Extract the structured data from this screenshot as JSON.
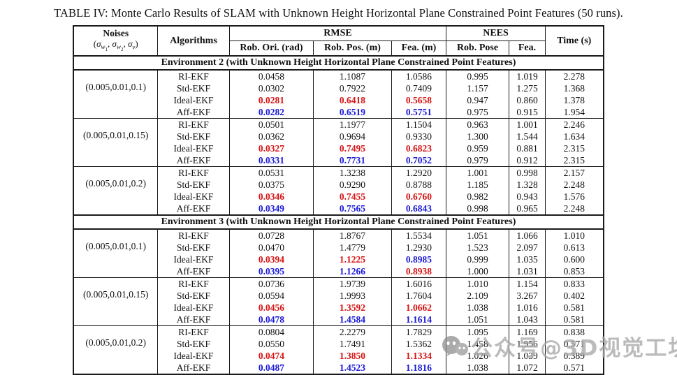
{
  "title": "TABLE IV: Monte Carlo Results of SLAM with Unknown Height Horizontal Plane Constrained Point Features (50 runs).",
  "header": {
    "noises_line1": "Noises",
    "noises_line2": "(σw1, σw2, σv)",
    "algorithms": "Algorithms",
    "rmse": "RMSE",
    "nees": "NEES",
    "time": "Time (s)",
    "sub": [
      "Rob. Ori. (rad)",
      "Rob. Pos. (m)",
      "Fea. (m)",
      "Rob. Pose",
      "Fea."
    ]
  },
  "accent_colors": {
    "best_red": "#d61313",
    "second_blue": "#1a1ad6"
  },
  "sections": [
    {
      "title": "Environment 2 (with Unknown Height Horizontal Plane Constrained Point Features)",
      "groups": [
        {
          "noise": "(0.005,0.01,0.1)",
          "rows": [
            {
              "alg": "RI-EKF",
              "cells": [
                "0.0458",
                "1.1087",
                "1.0586",
                "0.995",
                "1.019",
                "2.278"
              ],
              "styles": [
                "",
                "",
                "",
                "",
                "",
                ""
              ]
            },
            {
              "alg": "Std-EKF",
              "cells": [
                "0.0302",
                "0.7922",
                "0.7409",
                "1.157",
                "1.275",
                "1.368"
              ],
              "styles": [
                "",
                "",
                "",
                "",
                "",
                ""
              ]
            },
            {
              "alg": "Ideal-EKF",
              "cells": [
                "0.0281",
                "0.6418",
                "0.5658",
                "0.947",
                "0.860",
                "1.378"
              ],
              "styles": [
                "red",
                "red",
                "red",
                "",
                "",
                ""
              ]
            },
            {
              "alg": "Aff-EKF",
              "cells": [
                "0.0282",
                "0.6519",
                "0.5751",
                "0.975",
                "0.915",
                "1.954"
              ],
              "styles": [
                "blue",
                "blue",
                "blue",
                "",
                "",
                ""
              ]
            }
          ]
        },
        {
          "noise": "(0.005,0.01,0.15)",
          "rows": [
            {
              "alg": "RI-EKF",
              "cells": [
                "0.0501",
                "1.1977",
                "1.1504",
                "0.963",
                "1.001",
                "2.246"
              ],
              "styles": [
                "",
                "",
                "",
                "",
                "",
                ""
              ]
            },
            {
              "alg": "Std-EKF",
              "cells": [
                "0.0362",
                "0.9694",
                "0.9330",
                "1.300",
                "1.544",
                "1.634"
              ],
              "styles": [
                "",
                "",
                "",
                "",
                "",
                ""
              ]
            },
            {
              "alg": "Ideal-EKF",
              "cells": [
                "0.0327",
                "0.7495",
                "0.6823",
                "0.959",
                "0.881",
                "2.315"
              ],
              "styles": [
                "red",
                "red",
                "red",
                "",
                "",
                ""
              ]
            },
            {
              "alg": "Aff-EKF",
              "cells": [
                "0.0331",
                "0.7731",
                "0.7052",
                "0.979",
                "0.912",
                "2.315"
              ],
              "styles": [
                "blue",
                "blue",
                "blue",
                "",
                "",
                ""
              ]
            }
          ]
        },
        {
          "noise": "(0.005,0.01,0.2)",
          "rows": [
            {
              "alg": "RI-EKF",
              "cells": [
                "0.0531",
                "1.3238",
                "1.2920",
                "1.001",
                "0.998",
                "2.157"
              ],
              "styles": [
                "",
                "",
                "",
                "",
                "",
                ""
              ]
            },
            {
              "alg": "Std-EKF",
              "cells": [
                "0.0375",
                "0.9290",
                "0.8788",
                "1.185",
                "1.328",
                "2.248"
              ],
              "styles": [
                "",
                "",
                "",
                "",
                "",
                ""
              ]
            },
            {
              "alg": "Ideal-EKF",
              "cells": [
                "0.0346",
                "0.7455",
                "0.6760",
                "0.982",
                "0.943",
                "1.576"
              ],
              "styles": [
                "red",
                "red",
                "red",
                "",
                "",
                ""
              ]
            },
            {
              "alg": "Aff-EKF",
              "cells": [
                "0.0349",
                "0.7565",
                "0.6843",
                "0.998",
                "0.965",
                "2.248"
              ],
              "styles": [
                "blue",
                "blue",
                "blue",
                "",
                "",
                ""
              ]
            }
          ]
        }
      ]
    },
    {
      "title": "Environment 3 (with Unknown Height Horizontal Plane Constrained Point Features)",
      "groups": [
        {
          "noise": "(0.005,0.01,0.1)",
          "rows": [
            {
              "alg": "RI-EKF",
              "cells": [
                "0.0728",
                "1.8767",
                "1.5534",
                "1.051",
                "1.066",
                "1.010"
              ],
              "styles": [
                "",
                "",
                "",
                "",
                "",
                ""
              ]
            },
            {
              "alg": "Std-EKF",
              "cells": [
                "0.0470",
                "1.4779",
                "1.2930",
                "1.523",
                "2.097",
                "0.613"
              ],
              "styles": [
                "",
                "",
                "",
                "",
                "",
                ""
              ]
            },
            {
              "alg": "Ideal-EKF",
              "cells": [
                "0.0394",
                "1.1225",
                "0.8985",
                "0.999",
                "1.035",
                "0.600"
              ],
              "styles": [
                "red",
                "red",
                "blue",
                "",
                "",
                ""
              ]
            },
            {
              "alg": "Aff-EKF",
              "cells": [
                "0.0395",
                "1.1266",
                "0.8938",
                "1.000",
                "1.031",
                "0.853"
              ],
              "styles": [
                "blue",
                "blue",
                "red",
                "",
                "",
                ""
              ]
            }
          ]
        },
        {
          "noise": "(0.005,0.01,0.15)",
          "rows": [
            {
              "alg": "RI-EKF",
              "cells": [
                "0.0736",
                "1.9739",
                "1.6016",
                "1.010",
                "1.154",
                "0.833"
              ],
              "styles": [
                "",
                "",
                "",
                "",
                "",
                ""
              ]
            },
            {
              "alg": "Std-EKF",
              "cells": [
                "0.0594",
                "1.9993",
                "1.7604",
                "2.109",
                "3.267",
                "0.402"
              ],
              "styles": [
                "",
                "",
                "",
                "",
                "",
                ""
              ]
            },
            {
              "alg": "Ideal-EKF",
              "cells": [
                "0.0456",
                "1.3592",
                "1.0662",
                "1.038",
                "1.016",
                "0.581"
              ],
              "styles": [
                "red",
                "red",
                "red",
                "",
                "",
                ""
              ]
            },
            {
              "alg": "Aff-EKF",
              "cells": [
                "0.0478",
                "1.4584",
                "1.1614",
                "1.051",
                "1.043",
                "0.581"
              ],
              "styles": [
                "blue",
                "blue",
                "blue",
                "",
                "",
                ""
              ]
            }
          ]
        },
        {
          "noise": "(0.005,0.01,0.2)",
          "rows": [
            {
              "alg": "RI-EKF",
              "cells": [
                "0.0804",
                "2.2279",
                "1.7829",
                "1.095",
                "1.169",
                "0.838"
              ],
              "styles": [
                "",
                "",
                "",
                "",
                "",
                ""
              ]
            },
            {
              "alg": "Std-EKF",
              "cells": [
                "0.0550",
                "1.7491",
                "1.5362",
                "1.458",
                "1.956",
                "0.571"
              ],
              "styles": [
                "",
                "",
                "",
                "",
                "",
                ""
              ]
            },
            {
              "alg": "Ideal-EKF",
              "cells": [
                "0.0474",
                "1.3850",
                "1.1334",
                "1.026",
                "1.039",
                "0.389"
              ],
              "styles": [
                "red",
                "red",
                "red",
                "",
                "",
                ""
              ]
            },
            {
              "alg": "Aff-EKF",
              "cells": [
                "0.0487",
                "1.4523",
                "1.1816",
                "1.038",
                "1.072",
                "0.571"
              ],
              "styles": [
                "blue",
                "blue",
                "blue",
                "",
                "",
                ""
              ]
            }
          ]
        }
      ]
    }
  ],
  "watermark": {
    "icon": "wechat-icon",
    "text": "公众号@3D视觉工坊"
  }
}
